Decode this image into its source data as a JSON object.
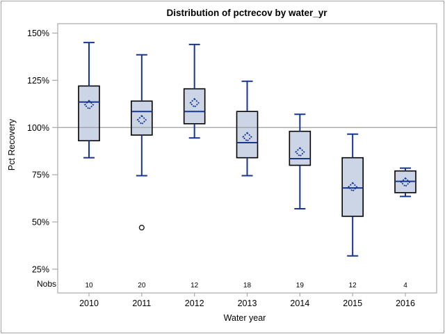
{
  "chart_data": {
    "type": "box",
    "title": "Distribution of pctrecov by water_yr",
    "xlabel": "Water year",
    "ylabel": "Pct Recovery",
    "nobs_label": "Nobs",
    "ylim": [
      12.4,
      155
    ],
    "y_ticks": [
      {
        "value": 150,
        "label": "150%"
      },
      {
        "value": 125,
        "label": "125%"
      },
      {
        "value": 100,
        "label": "100%"
      },
      {
        "value": 75,
        "label": "75%"
      },
      {
        "value": 50,
        "label": "50%"
      },
      {
        "value": 25,
        "label": "25%"
      }
    ],
    "reference_line": 100,
    "grid": false,
    "legend": "none",
    "categories": [
      "2010",
      "2011",
      "2012",
      "2013",
      "2014",
      "2015",
      "2016"
    ],
    "nobs": [
      10,
      20,
      12,
      18,
      19,
      12,
      4
    ],
    "boxes": [
      {
        "category": "2010",
        "n": 10,
        "whisker_low": 84,
        "q1": 93,
        "median": 113.5,
        "mean": 112,
        "q3": 122,
        "whisker_high": 145,
        "outliers": []
      },
      {
        "category": "2011",
        "n": 20,
        "whisker_low": 74.5,
        "q1": 96,
        "median": 108.5,
        "mean": 104,
        "q3": 114,
        "whisker_high": 138.5,
        "outliers": [
          47
        ]
      },
      {
        "category": "2012",
        "n": 12,
        "whisker_low": 94.5,
        "q1": 102,
        "median": 108.5,
        "mean": 113,
        "q3": 120.5,
        "whisker_high": 144,
        "outliers": []
      },
      {
        "category": "2013",
        "n": 18,
        "whisker_low": 74.5,
        "q1": 84,
        "median": 92,
        "mean": 95,
        "q3": 108.5,
        "whisker_high": 124.5,
        "outliers": []
      },
      {
        "category": "2014",
        "n": 19,
        "whisker_low": 57,
        "q1": 80,
        "median": 83.5,
        "mean": 87,
        "q3": 98,
        "whisker_high": 107,
        "outliers": []
      },
      {
        "category": "2015",
        "n": 12,
        "whisker_low": 32,
        "q1": 53,
        "median": 68,
        "mean": 68.5,
        "q3": 84,
        "whisker_high": 96.5,
        "outliers": []
      },
      {
        "category": "2016",
        "n": 4,
        "whisker_low": 63.5,
        "q1": 65.5,
        "median": 71.5,
        "mean": 71,
        "q3": 77,
        "whisker_high": 78.5,
        "outliers": []
      }
    ],
    "colors": {
      "box_fill": "#ccd5e6",
      "box_border": "#000000",
      "line": "#16368f",
      "reference_line": "#9b9fa3",
      "wall_border": "#a6aaae",
      "outlier": "#1a1a1a",
      "background": "#ffffff"
    }
  }
}
